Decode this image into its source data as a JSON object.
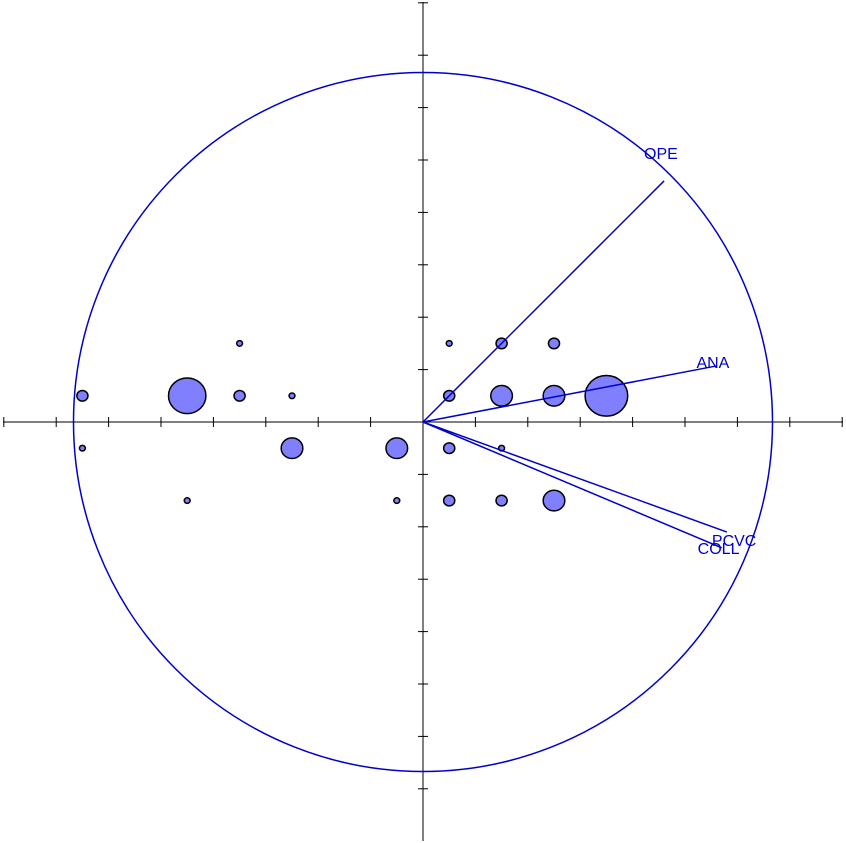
{
  "chart_data": {
    "type": "scatter",
    "title": "",
    "xlabel": "",
    "ylabel": "",
    "xlim": [
      -8,
      8
    ],
    "ylim": [
      -8,
      8
    ],
    "x_ticks": [
      -8,
      -7,
      -6,
      -5,
      -4,
      -3,
      -2,
      -1,
      1,
      2,
      3,
      4,
      5,
      6,
      7,
      8
    ],
    "y_ticks": [
      -7,
      -6,
      -5,
      -4,
      -3,
      -2,
      -1,
      1,
      2,
      3,
      4,
      5,
      6,
      7,
      8
    ],
    "grid": false,
    "correlation_circle_radius": 6.67,
    "colors": {
      "variables": "#0000cc",
      "bubbles": "#8080ff",
      "bubble_outline": "#000000",
      "axes": "#000000"
    },
    "variables": [
      {
        "name": "OPE",
        "x": 4.6,
        "y": 4.6
      },
      {
        "name": "ANA",
        "x": 5.6,
        "y": 1.07
      },
      {
        "name": "PCVC",
        "x": 5.8,
        "y": -2.1
      },
      {
        "name": "COLL",
        "x": 5.7,
        "y": -2.4
      }
    ],
    "points": [
      {
        "x": -6.5,
        "y": 0.5,
        "weight": 2
      },
      {
        "x": -6.5,
        "y": -0.5,
        "weight": 1
      },
      {
        "x": -4.5,
        "y": 0.5,
        "weight": 7
      },
      {
        "x": -4.5,
        "y": -1.5,
        "weight": 1
      },
      {
        "x": -3.5,
        "y": 1.5,
        "weight": 1
      },
      {
        "x": -3.5,
        "y": 0.5,
        "weight": 2
      },
      {
        "x": -2.5,
        "y": 0.5,
        "weight": 1
      },
      {
        "x": -2.5,
        "y": -0.5,
        "weight": 4
      },
      {
        "x": -0.5,
        "y": -0.5,
        "weight": 4
      },
      {
        "x": -0.5,
        "y": -1.5,
        "weight": 1
      },
      {
        "x": 0.5,
        "y": 1.5,
        "weight": 1
      },
      {
        "x": 0.5,
        "y": 0.5,
        "weight": 2
      },
      {
        "x": 0.5,
        "y": -0.5,
        "weight": 2
      },
      {
        "x": 0.5,
        "y": -1.5,
        "weight": 2
      },
      {
        "x": 1.5,
        "y": 1.5,
        "weight": 2
      },
      {
        "x": 1.5,
        "y": 0.5,
        "weight": 4
      },
      {
        "x": 1.5,
        "y": -0.5,
        "weight": 1
      },
      {
        "x": 1.5,
        "y": -1.5,
        "weight": 2
      },
      {
        "x": 2.5,
        "y": 1.5,
        "weight": 2
      },
      {
        "x": 2.5,
        "y": 0.5,
        "weight": 4
      },
      {
        "x": 2.5,
        "y": -1.5,
        "weight": 4
      },
      {
        "x": 3.5,
        "y": 0.5,
        "weight": 8
      }
    ]
  }
}
